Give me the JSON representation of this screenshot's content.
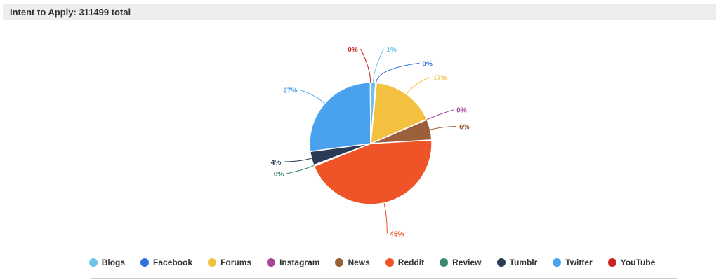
{
  "header": {
    "title": "Intent to Apply: 311499 total"
  },
  "chart_data": {
    "type": "pie",
    "title": "Intent to Apply: 311499 total",
    "total": 311499,
    "categories": [
      "Blogs",
      "Facebook",
      "Forums",
      "Instagram",
      "News",
      "Reddit",
      "Review",
      "Tumblr",
      "Twitter",
      "YouTube"
    ],
    "values": [
      1.3,
      0.2,
      17.0,
      0.1,
      5.5,
      44.9,
      0.3,
      3.7,
      27.0,
      0.1
    ],
    "labels": [
      "1%",
      "0%",
      "17%",
      "0%",
      "6%",
      "45%",
      "0%",
      "4%",
      "27%",
      "0%"
    ],
    "colors": [
      "#6ec3e9",
      "#2f6fe0",
      "#f4c040",
      "#a3479b",
      "#9b5f3b",
      "#ee5427",
      "#3a8a6a",
      "#2b3a55",
      "#4aa2ee",
      "#cc2222"
    ],
    "legend_position": "bottom"
  }
}
